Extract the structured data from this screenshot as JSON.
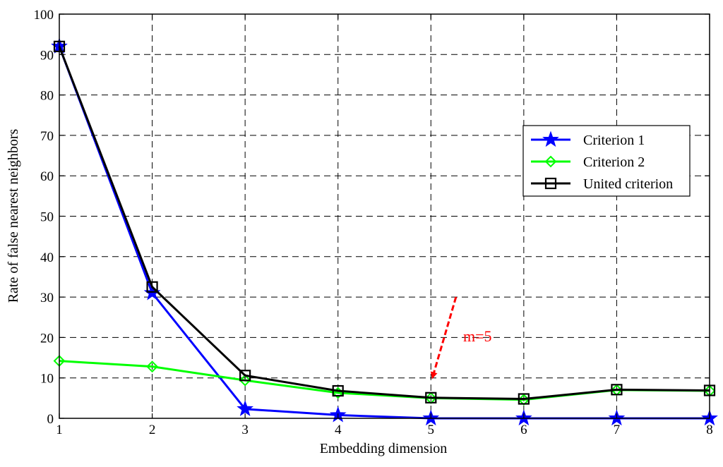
{
  "chart_data": {
    "type": "line",
    "title": "",
    "xlabel": "Embedding dimension",
    "ylabel": "Rate of false nearest neighbors",
    "xlim": [
      1,
      8
    ],
    "ylim": [
      0,
      100
    ],
    "x_ticks": [
      "1",
      "2",
      "3",
      "4",
      "5",
      "6",
      "7",
      "8"
    ],
    "y_ticks": [
      "0",
      "10",
      "20",
      "30",
      "40",
      "50",
      "60",
      "70",
      "80",
      "90",
      "100"
    ],
    "grid": true,
    "grid_style": "dashed",
    "legend_position": "right",
    "x": [
      1,
      2,
      3,
      4,
      5,
      6,
      7,
      8
    ],
    "series": [
      {
        "name": "Criterion 1",
        "values": [
          92,
          31,
          2.3,
          0.8,
          0,
          0,
          0,
          0
        ],
        "color": "#0000ff",
        "marker": "star"
      },
      {
        "name": "Criterion 2",
        "values": [
          14.2,
          12.8,
          9.4,
          6.3,
          5.0,
          4.6,
          7.0,
          6.8
        ],
        "color": "#00ff00",
        "marker": "diamond"
      },
      {
        "name": "United criterion",
        "values": [
          92,
          32.5,
          10.6,
          6.8,
          5.1,
          4.8,
          7.1,
          6.9
        ],
        "color": "#000000",
        "marker": "square"
      }
    ],
    "annotation": {
      "text": "m=5",
      "color": "#ff0000",
      "points_to": {
        "x": 5,
        "y": 9.5
      },
      "from": {
        "x": 5.27,
        "y": 30
      }
    }
  }
}
